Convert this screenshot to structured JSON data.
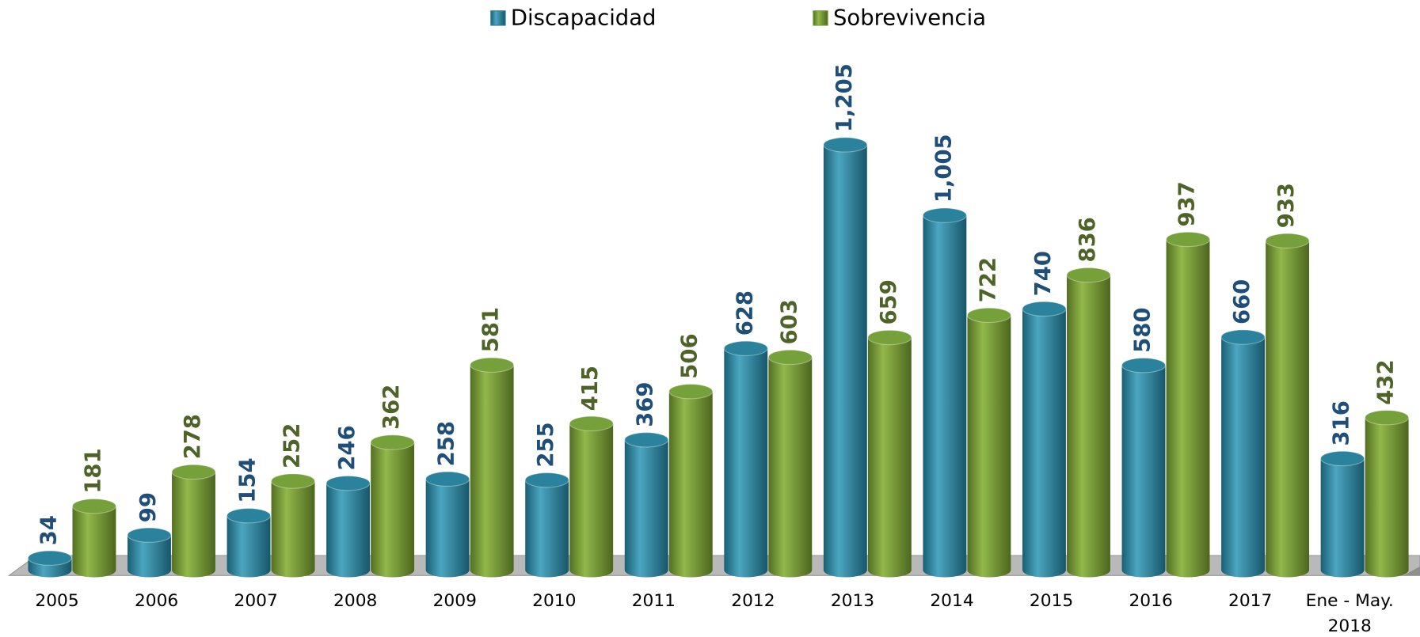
{
  "chart_data": {
    "type": "bar",
    "categories": [
      "2005",
      "2006",
      "2007",
      "2008",
      "2009",
      "2010",
      "2011",
      "2012",
      "2013",
      "2014",
      "2015",
      "2016",
      "2017",
      "Ene - May. 2018"
    ],
    "series": [
      {
        "name": "Discapacidad",
        "color": "#2a829c",
        "values": [
          34,
          99,
          154,
          246,
          258,
          255,
          369,
          628,
          1205,
          1005,
          740,
          580,
          660,
          316
        ],
        "value_labels": [
          "34",
          "99",
          "154",
          "246",
          "258",
          "255",
          "369",
          "628",
          "1,205",
          "1,005",
          "740",
          "580",
          "660",
          "316"
        ]
      },
      {
        "name": "Sobrevivencia",
        "color": "#76a03a",
        "values": [
          181,
          278,
          252,
          362,
          581,
          415,
          506,
          603,
          659,
          722,
          836,
          937,
          933,
          432
        ],
        "value_labels": [
          "181",
          "278",
          "252",
          "362",
          "581",
          "415",
          "506",
          "603",
          "659",
          "722",
          "836",
          "937",
          "933",
          "432"
        ]
      }
    ],
    "legend": "top"
  }
}
